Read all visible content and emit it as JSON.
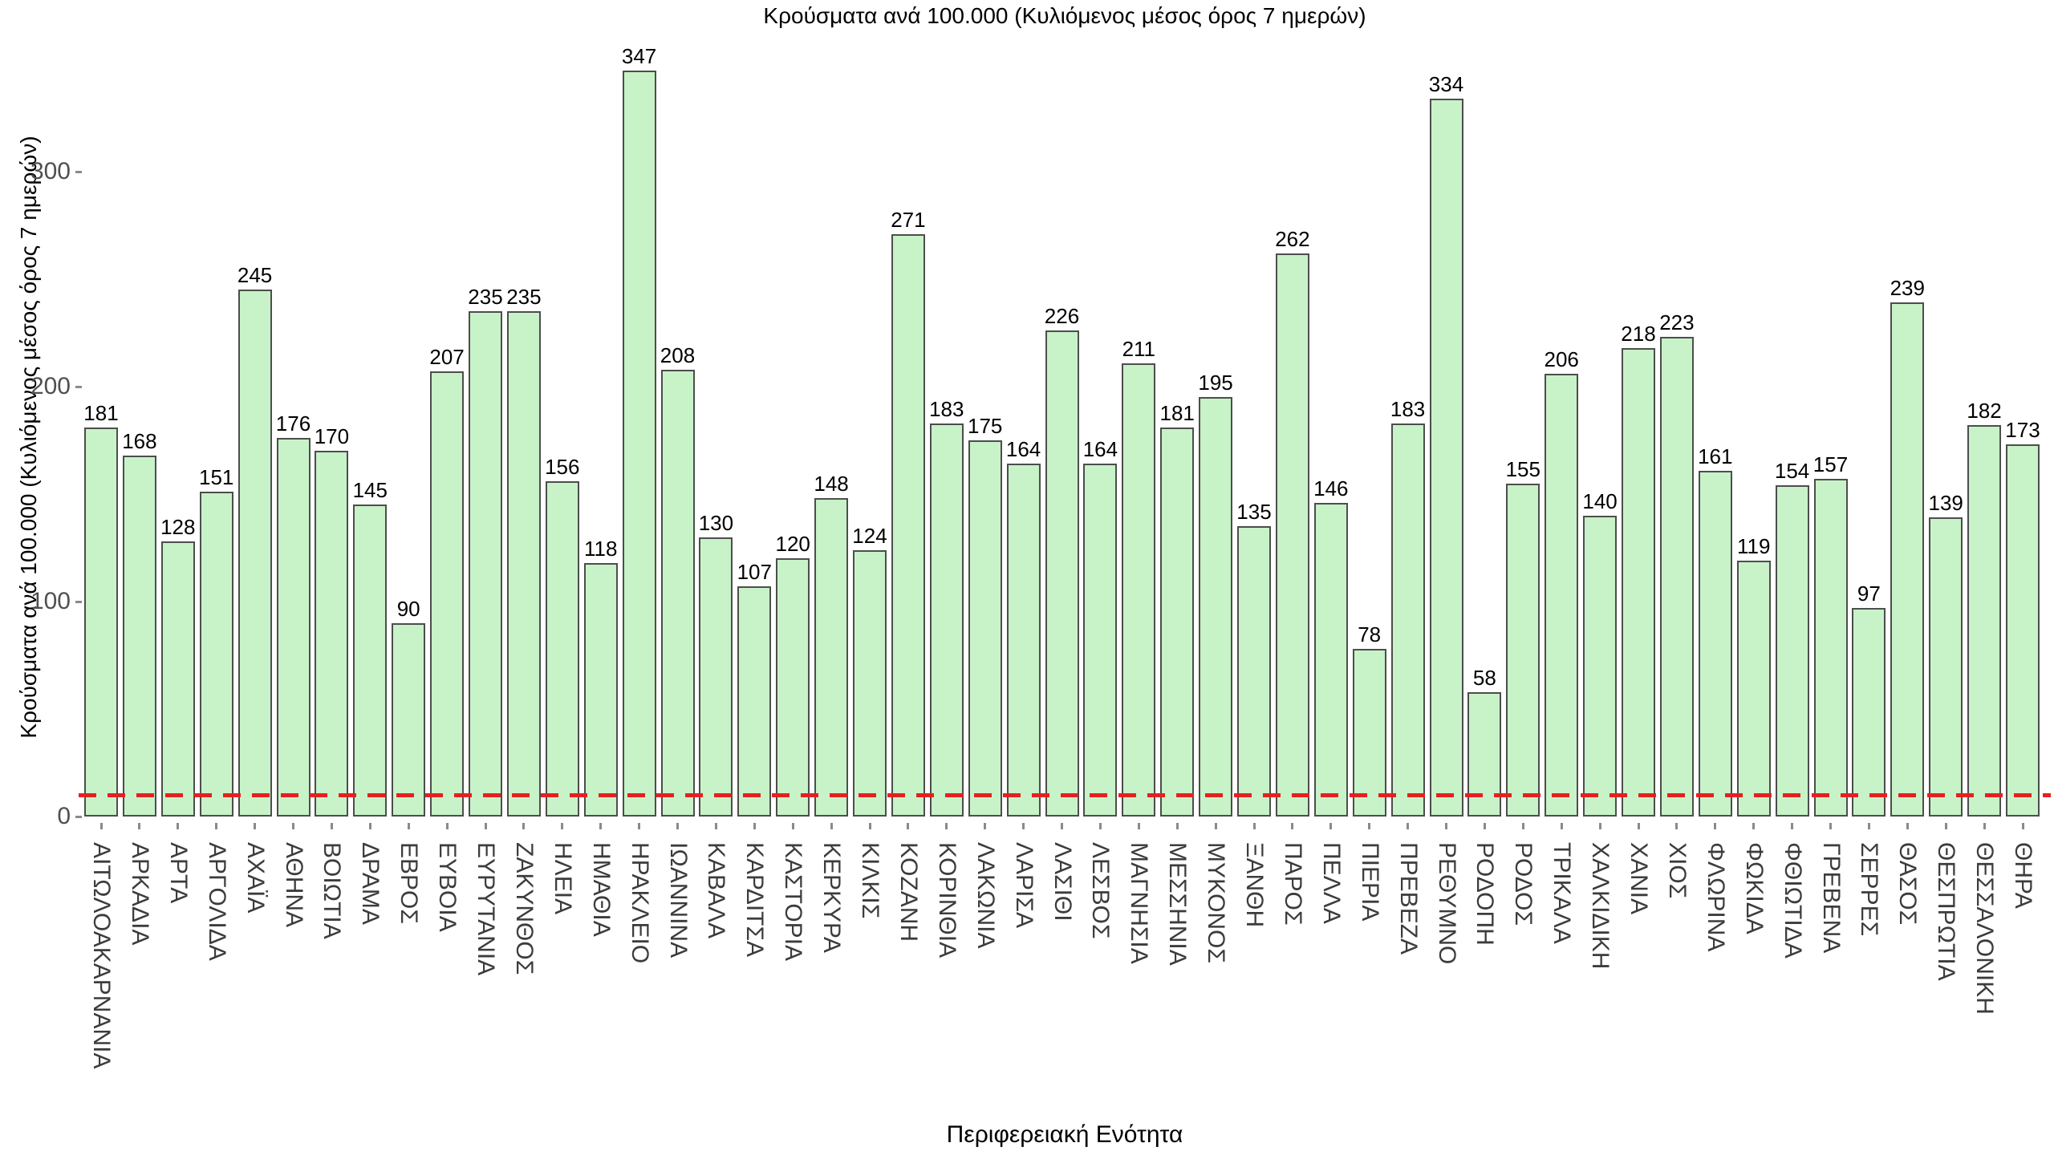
{
  "chart_data": {
    "type": "bar",
    "title": "Κρούσματα ανά 100.000 (Κυλιόμενος μέσος όρος 7 ημερών)",
    "ylabel": "Κρούσματα ανά 100.000 (Κυλιόμενος μέσος όρος 7 ημερών)",
    "xlabel": "Περιφερειακή Ενότητα",
    "categories": [
      "ΑΙΤΩΛΟΑΚΑΡΝΑΝΙΑ",
      "ΑΡΚΑΔΙΑ",
      "ΑΡΤΑ",
      "ΑΡΓΟΛΙΔΑ",
      "ΑΧΑΪΑ",
      "ΑΘΗΝΑ",
      "ΒΟΙΩΤΙΑ",
      "ΔΡΑΜΑ",
      "ΕΒΡΟΣ",
      "ΕΥΒΟΙΑ",
      "ΕΥΡΥΤΑΝΙΑ",
      "ΖΑΚΥΝΘΟΣ",
      "ΗΛΕΙΑ",
      "ΗΜΑΘΙΑ",
      "ΗΡΑΚΛΕΙΟ",
      "ΙΩΑΝΝΙΝΑ",
      "ΚΑΒΑΛΑ",
      "ΚΑΡΔΙΤΣΑ",
      "ΚΑΣΤΟΡΙΑ",
      "ΚΕΡΚΥΡΑ",
      "ΚΙΛΚΙΣ",
      "ΚΟΖΑΝΗ",
      "ΚΟΡΙΝΘΙΑ",
      "ΛΑΚΩΝΙΑ",
      "ΛΑΡΙΣΑ",
      "ΛΑΣΙΘΙ",
      "ΛΕΣΒΟΣ",
      "ΜΑΓΝΗΣΙΑ",
      "ΜΕΣΣΗΝΙΑ",
      "ΜΥΚΟΝΟΣ",
      "ΞΑΝΘΗ",
      "ΠΑΡΟΣ",
      "ΠΕΛΛΑ",
      "ΠΙΕΡΙΑ",
      "ΠΡΕΒΕΖΑ",
      "ΡΕΘΥΜΝΟ",
      "ΡΟΔΟΠΗ",
      "ΡΟΔΟΣ",
      "ΤΡΙΚΑΛΑ",
      "ΧΑΛΚΙΔΙΚΗ",
      "ΧΑΝΙΑ",
      "ΧΙΟΣ",
      "ΦΛΩΡΙΝΑ",
      "ΦΩΚΙΔΑ",
      "ΦΘΙΩΤΙΔΑ",
      "ΓΡΕΒΕΝΑ",
      "ΣΕΡΡΕΣ",
      "ΘΑΣΟΣ",
      "ΘΕΣΠΡΩΤΙΑ",
      "ΘΕΣΣΑΛΟΝΙΚΗ",
      "ΘΗΡΑ"
    ],
    "values": [
      181,
      168,
      128,
      151,
      245,
      176,
      170,
      145,
      90,
      207,
      235,
      235,
      156,
      118,
      347,
      208,
      130,
      107,
      120,
      148,
      124,
      271,
      183,
      175,
      164,
      226,
      164,
      211,
      181,
      195,
      135,
      262,
      146,
      78,
      183,
      334,
      58,
      155,
      206,
      140,
      218,
      223,
      161,
      119,
      154,
      157,
      97,
      239,
      139,
      182,
      173
    ],
    "yticks": [
      0,
      100,
      200,
      300
    ],
    "ylim": [
      0,
      362
    ],
    "grid": false,
    "legend": "none",
    "threshold_line": {
      "value": 10,
      "style": "dashed",
      "color": "#e52020"
    },
    "bar_fill_color": "#c8f2c8",
    "bar_edge_color": "#4d4d4d",
    "value_label_color": "#000000",
    "tick_label_color": "#4f4f4f",
    "category_label_color": "#3c3c3c"
  }
}
